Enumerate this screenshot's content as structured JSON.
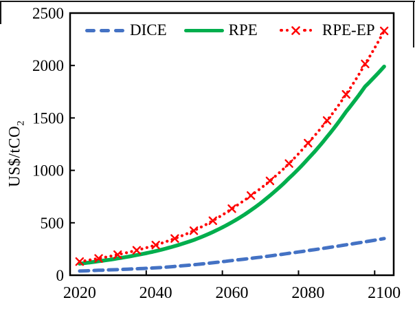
{
  "figure": {
    "y_axis_title_base": "US$/tCO",
    "y_axis_title_sub": "2"
  },
  "colors": {
    "background": "#FFFFFF",
    "axis": "#000000",
    "outer_frame": "#161616",
    "dice": "#4472C4",
    "rpe": "#00AE4D",
    "rpe_ep": "#FF0000"
  },
  "chart_data": {
    "type": "line",
    "title": "",
    "xlabel": "",
    "ylabel": "US$/tCO2",
    "ylim": [
      0,
      2500
    ],
    "xlim_years": [
      2020,
      2100
    ],
    "grid": false,
    "legend_position": "top-inside-horizontal",
    "x": [
      2020,
      2025,
      2030,
      2035,
      2040,
      2045,
      2050,
      2055,
      2060,
      2065,
      2070,
      2075,
      2080,
      2085,
      2090,
      2095,
      2100
    ],
    "yticks": [
      0,
      500,
      1000,
      1500,
      2000,
      2500
    ],
    "xtick_labels": [
      "2020",
      "2040",
      "2060",
      "2080",
      "2100"
    ],
    "series": [
      {
        "name": "DICE",
        "color": "#4472C4",
        "style": "dashed",
        "values": [
          40,
          47,
          54,
          62,
          70,
          84,
          100,
          119,
          140,
          161,
          184,
          209,
          235,
          262,
          290,
          319,
          350
        ]
      },
      {
        "name": "RPE",
        "color": "#00AE4D",
        "style": "solid",
        "values": [
          110,
          133,
          160,
          192,
          230,
          278,
          336,
          412,
          505,
          620,
          760,
          925,
          1110,
          1320,
          1560,
          1800,
          1990
        ]
      },
      {
        "name": "RPE-EP",
        "color": "#FF0000",
        "style": "dotted-x-markers",
        "values": [
          130,
          160,
          196,
          238,
          288,
          350,
          425,
          520,
          635,
          760,
          900,
          1065,
          1260,
          1475,
          1725,
          2015,
          2330
        ]
      }
    ]
  }
}
